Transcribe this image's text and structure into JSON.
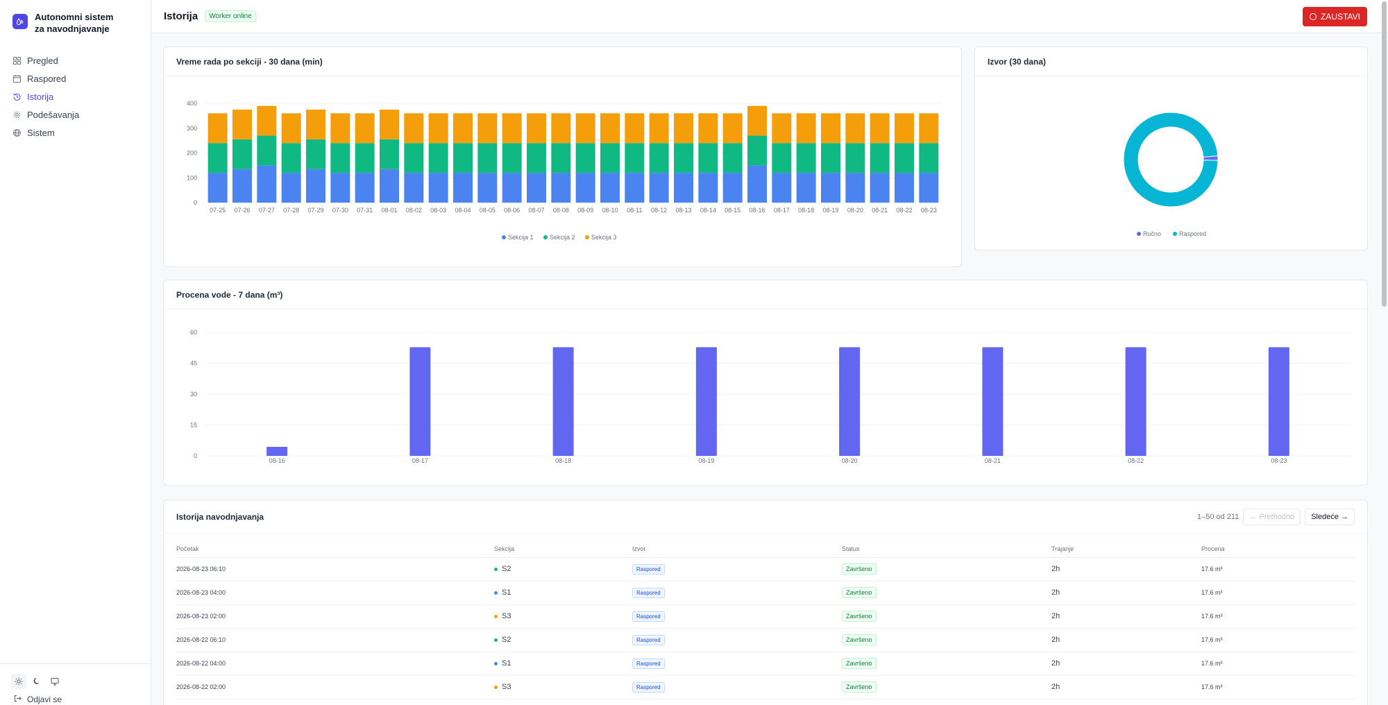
{
  "app": {
    "title": "Autonomni sistem za navodnjavanje"
  },
  "sidebar": {
    "items": [
      {
        "label": "Pregled",
        "icon": "dashboard-icon",
        "name": "pregled"
      },
      {
        "label": "Raspored",
        "icon": "calendar-icon",
        "name": "raspored"
      },
      {
        "label": "Istorija",
        "icon": "history-icon",
        "name": "istorija",
        "active": true
      },
      {
        "label": "Podešavanja",
        "icon": "gear-icon",
        "name": "podesavanja"
      },
      {
        "label": "Sistem",
        "icon": "globe-icon",
        "name": "sistem"
      }
    ],
    "theme_buttons": [
      "sun-icon",
      "moon-icon",
      "monitor-icon"
    ],
    "logout_label": "Odjavi se"
  },
  "header": {
    "title": "Istorija",
    "worker_status": "Worker online",
    "stop_label": "ZAUSTAVI"
  },
  "colors": {
    "s1": "#4b84f0",
    "s2": "#10b981",
    "s3": "#f59e0b",
    "accent": "#6366f1",
    "donut": "#06b6d4",
    "danger": "#dc2626"
  },
  "runtime_card": {
    "title": "Vreme rada po sekciji - 30 dana (min)"
  },
  "source_card": {
    "title": "Izvor (30 dana)"
  },
  "water_card": {
    "title": "Procena vode - 7 dana (m³)"
  },
  "chart_data": [
    {
      "type": "bar",
      "stacked": true,
      "title": "Vreme rada po sekciji - 30 dana (min)",
      "categories": [
        "07-25",
        "07-26",
        "07-27",
        "07-28",
        "07-29",
        "07-30",
        "07-31",
        "08-01",
        "08-02",
        "08-03",
        "08-04",
        "08-05",
        "08-06",
        "08-07",
        "08-08",
        "08-09",
        "08-10",
        "08-11",
        "08-12",
        "08-13",
        "08-14",
        "08-15",
        "08-16",
        "08-17",
        "08-18",
        "08-19",
        "08-20",
        "08-21",
        "08-22",
        "08-23"
      ],
      "series": [
        {
          "name": "Sekcija 1",
          "values": [
            120,
            135,
            150,
            120,
            135,
            120,
            120,
            135,
            120,
            120,
            120,
            120,
            120,
            120,
            120,
            120,
            120,
            120,
            120,
            120,
            120,
            120,
            150,
            120,
            120,
            120,
            120,
            120,
            120,
            120
          ]
        },
        {
          "name": "Sekcija 2",
          "values": [
            120,
            120,
            120,
            120,
            120,
            120,
            120,
            120,
            120,
            120,
            120,
            120,
            120,
            120,
            120,
            120,
            120,
            120,
            120,
            120,
            120,
            120,
            120,
            120,
            120,
            120,
            120,
            120,
            120,
            120
          ]
        },
        {
          "name": "Sekcija 3",
          "values": [
            120,
            120,
            120,
            120,
            120,
            120,
            120,
            120,
            120,
            120,
            120,
            120,
            120,
            120,
            120,
            120,
            120,
            120,
            120,
            120,
            120,
            120,
            120,
            120,
            120,
            120,
            120,
            120,
            120,
            120
          ]
        }
      ],
      "yticks": [
        0,
        100,
        200,
        300,
        400
      ],
      "ylim": [
        0,
        400
      ],
      "legend": "bottom"
    },
    {
      "type": "pie",
      "donut": true,
      "title": "Izvor (30 dana)",
      "labels": [
        "Ručno",
        "Raspored"
      ],
      "values": [
        1.5,
        98.5
      ],
      "legend": "bottom"
    },
    {
      "type": "bar",
      "title": "Procena vode - 7 dana (m³)",
      "categories": [
        "08-16",
        "08-17",
        "08-18",
        "08-19",
        "08-20",
        "08-21",
        "08-22",
        "08-23"
      ],
      "values": [
        4.4,
        52.8,
        52.8,
        52.8,
        52.8,
        52.8,
        52.8,
        52.8
      ],
      "yticks": [
        0,
        15,
        30,
        45,
        60
      ],
      "ylim": [
        0,
        60
      ]
    }
  ],
  "history": {
    "title": "Istorija navodnjavanja",
    "range": "1–50 od 211",
    "prev_label": "← Prethodno",
    "next_label": "Sledeće →",
    "columns": [
      "Početak",
      "Sekcija",
      "Izvor",
      "Status",
      "Trajanje",
      "Procena"
    ],
    "rows": [
      {
        "start": "2026-08-23 06:10",
        "section": "S2",
        "sec_color": "#10b981",
        "source": "Raspored",
        "status": "Završeno",
        "duration": "2h",
        "estimate": "17.6 m³"
      },
      {
        "start": "2026-08-23 04:00",
        "section": "S1",
        "sec_color": "#4b84f0",
        "source": "Raspored",
        "status": "Završeno",
        "duration": "2h",
        "estimate": "17.6 m³"
      },
      {
        "start": "2026-08-23 02:00",
        "section": "S3",
        "sec_color": "#f59e0b",
        "source": "Raspored",
        "status": "Završeno",
        "duration": "2h",
        "estimate": "17.6 m³"
      },
      {
        "start": "2026-08-22 06:10",
        "section": "S2",
        "sec_color": "#10b981",
        "source": "Raspored",
        "status": "Završeno",
        "duration": "2h",
        "estimate": "17.6 m³"
      },
      {
        "start": "2026-08-22 04:00",
        "section": "S1",
        "sec_color": "#4b84f0",
        "source": "Raspored",
        "status": "Završeno",
        "duration": "2h",
        "estimate": "17.6 m³"
      },
      {
        "start": "2026-08-22 02:00",
        "section": "S3",
        "sec_color": "#f59e0b",
        "source": "Raspored",
        "status": "Završeno",
        "duration": "2h",
        "estimate": "17.6 m³"
      }
    ]
  }
}
